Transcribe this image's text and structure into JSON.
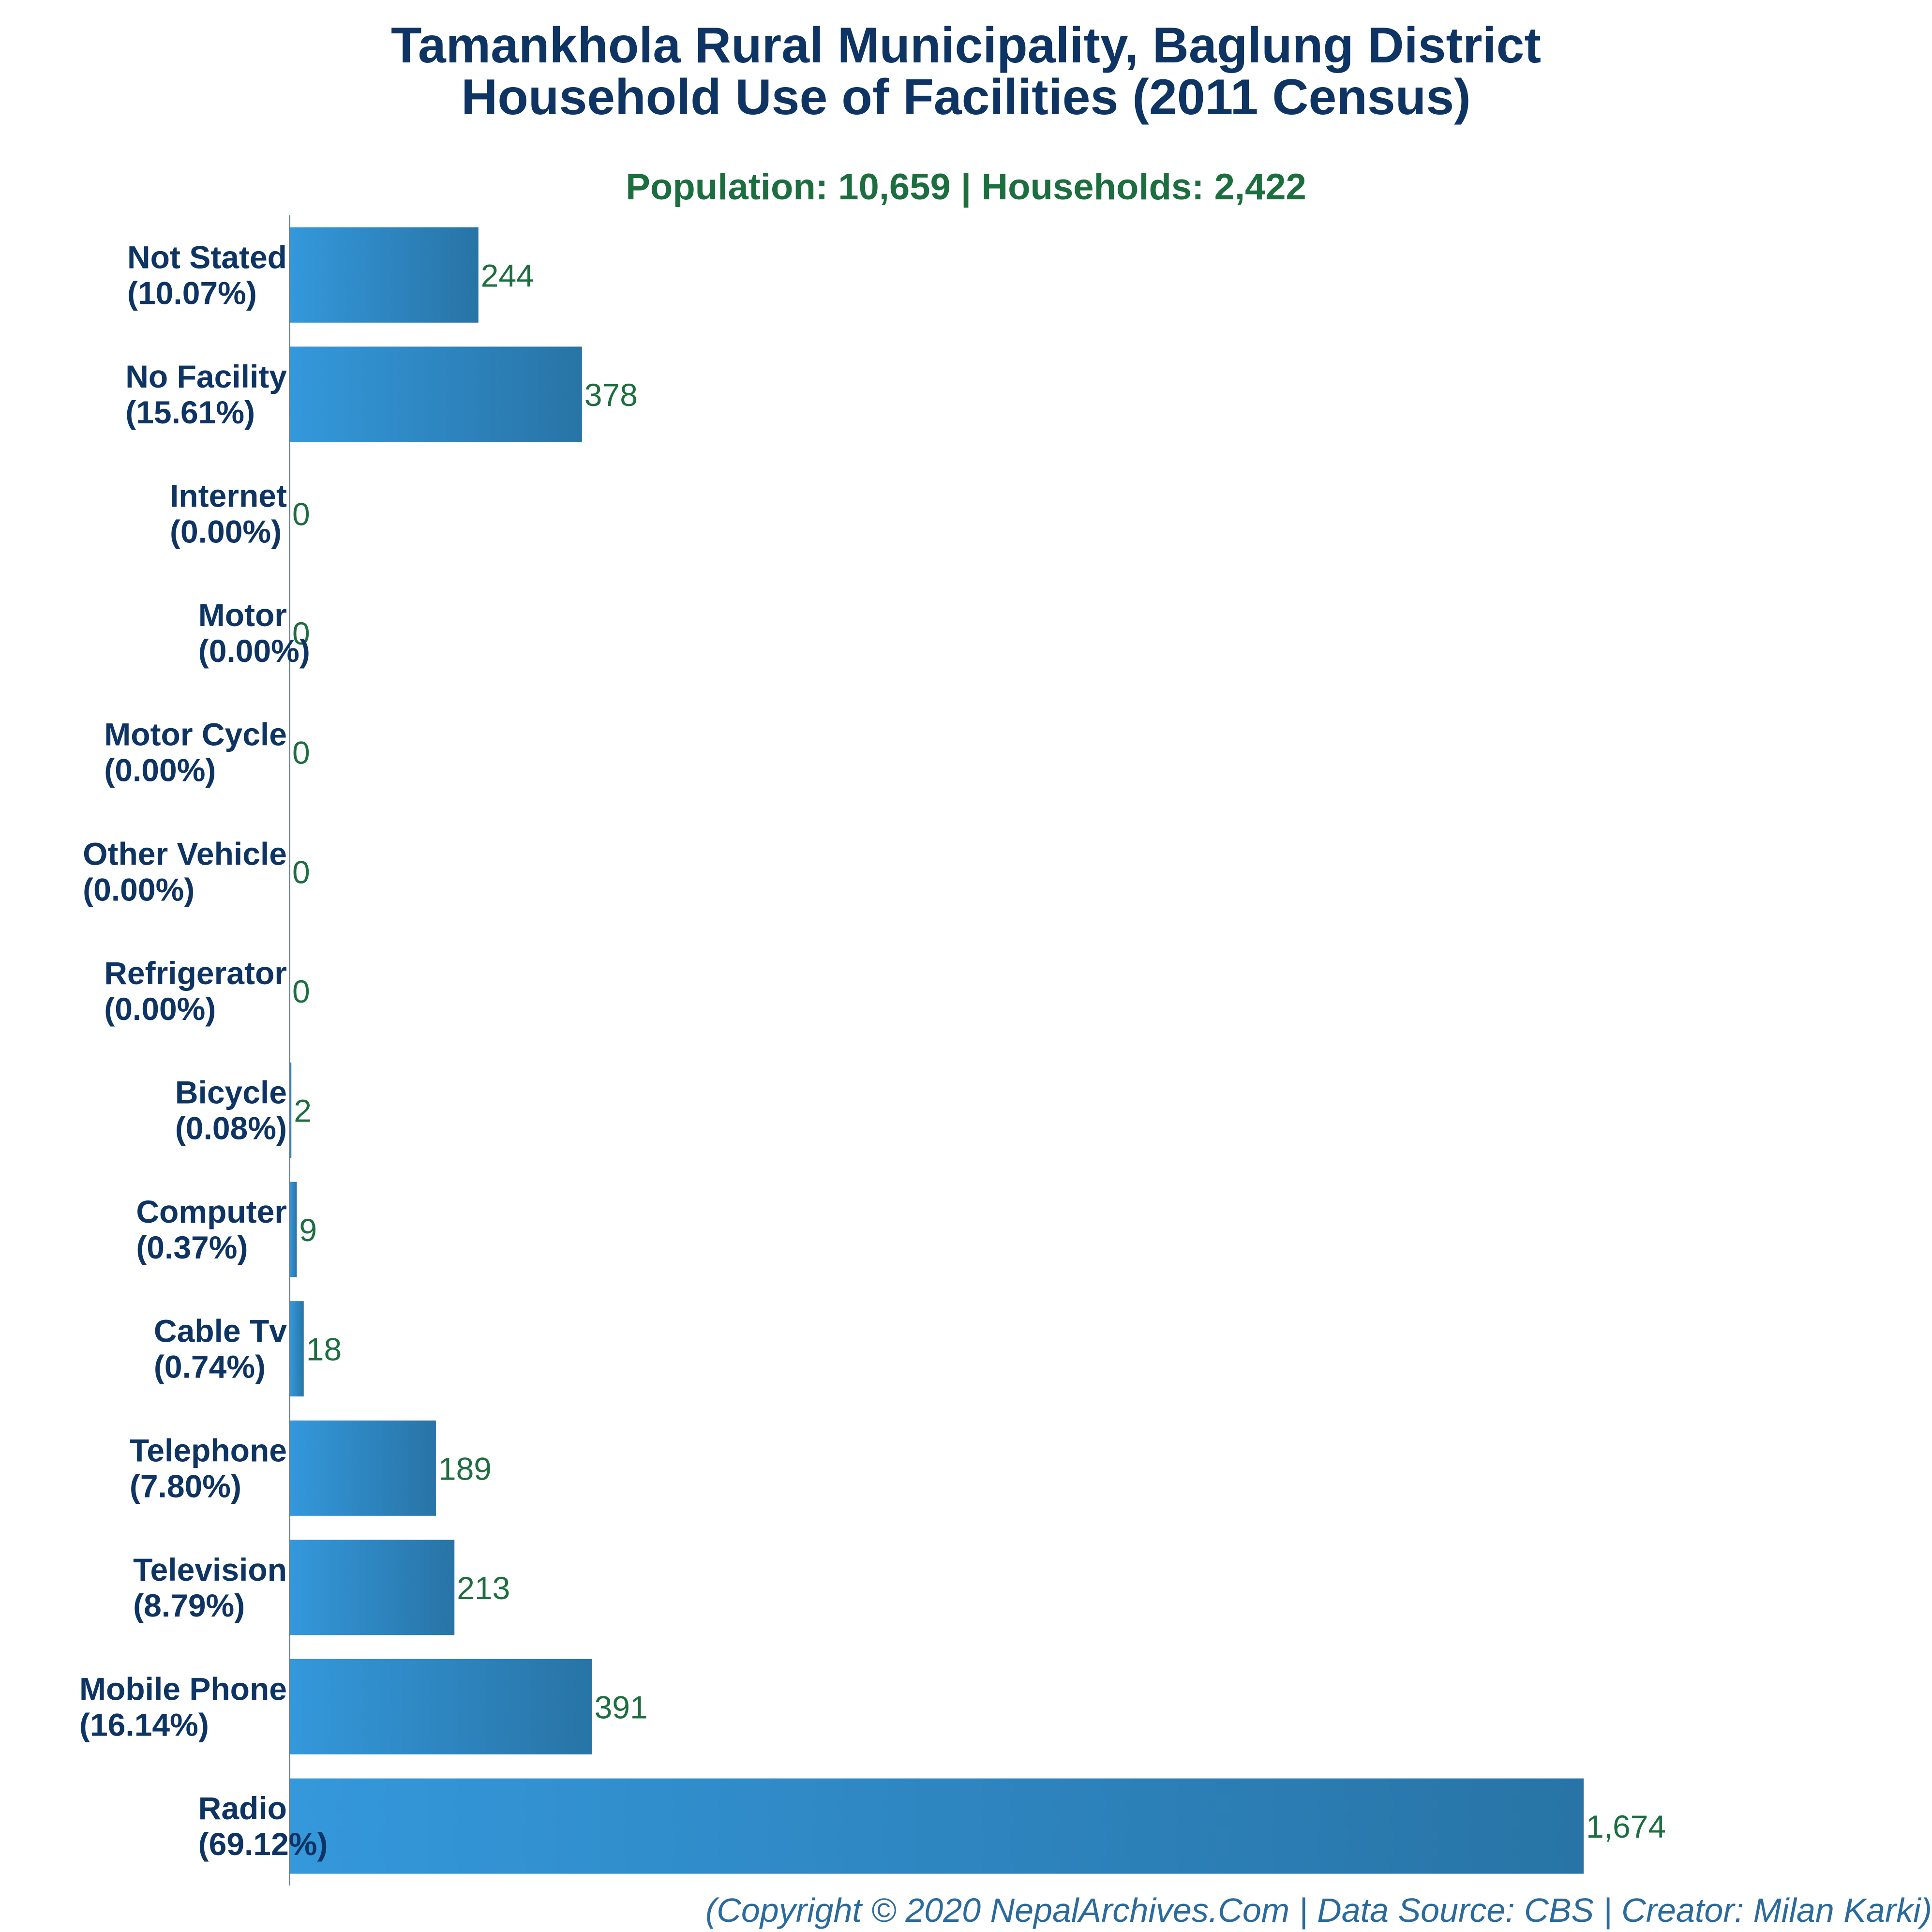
{
  "title_line_1": "Tamankhola Rural Municipality, Baglung District",
  "title_line_2": "Household Use of Facilities (2011 Census)",
  "subtitle": "Population: 10,659 | Households: 2,422",
  "footer": "(Copyright © 2020 NepalArchives.Com | Data Source: CBS | Creator: Milan Karki)",
  "colors": {
    "title": "#0e3463",
    "subtitle": "#1d6e3f",
    "bar_gradient_start": "#3498db",
    "bar_gradient_end": "#2874a6",
    "value_label": "#1d6e3f",
    "footer": "#2b6a9c"
  },
  "chart_data": {
    "type": "bar",
    "orientation": "horizontal",
    "categories": [
      {
        "name": "Not Stated",
        "percent": "(10.07%)",
        "value": 244,
        "value_label": "244"
      },
      {
        "name": "No Facility",
        "percent": "(15.61%)",
        "value": 378,
        "value_label": "378"
      },
      {
        "name": "Internet",
        "percent": "(0.00%)",
        "value": 0,
        "value_label": "0"
      },
      {
        "name": "Motor",
        "percent": "(0.00%)",
        "value": 0,
        "value_label": "0"
      },
      {
        "name": "Motor Cycle",
        "percent": "(0.00%)",
        "value": 0,
        "value_label": "0"
      },
      {
        "name": "Other Vehicle",
        "percent": "(0.00%)",
        "value": 0,
        "value_label": "0"
      },
      {
        "name": "Refrigerator",
        "percent": "(0.00%)",
        "value": 0,
        "value_label": "0"
      },
      {
        "name": "Bicycle",
        "percent": "(0.08%)",
        "value": 2,
        "value_label": "2"
      },
      {
        "name": "Computer",
        "percent": "(0.37%)",
        "value": 9,
        "value_label": "9"
      },
      {
        "name": "Cable Tv",
        "percent": "(0.74%)",
        "value": 18,
        "value_label": "18"
      },
      {
        "name": "Telephone",
        "percent": "(7.80%)",
        "value": 189,
        "value_label": "189"
      },
      {
        "name": "Television",
        "percent": "(8.79%)",
        "value": 213,
        "value_label": "213"
      },
      {
        "name": "Mobile Phone",
        "percent": "(16.14%)",
        "value": 391,
        "value_label": "391"
      },
      {
        "name": "Radio",
        "percent": "(69.12%)",
        "value": 1674,
        "value_label": "1,674"
      }
    ],
    "xlim": [
      0,
      1674
    ],
    "grid": false,
    "legend": "none"
  }
}
